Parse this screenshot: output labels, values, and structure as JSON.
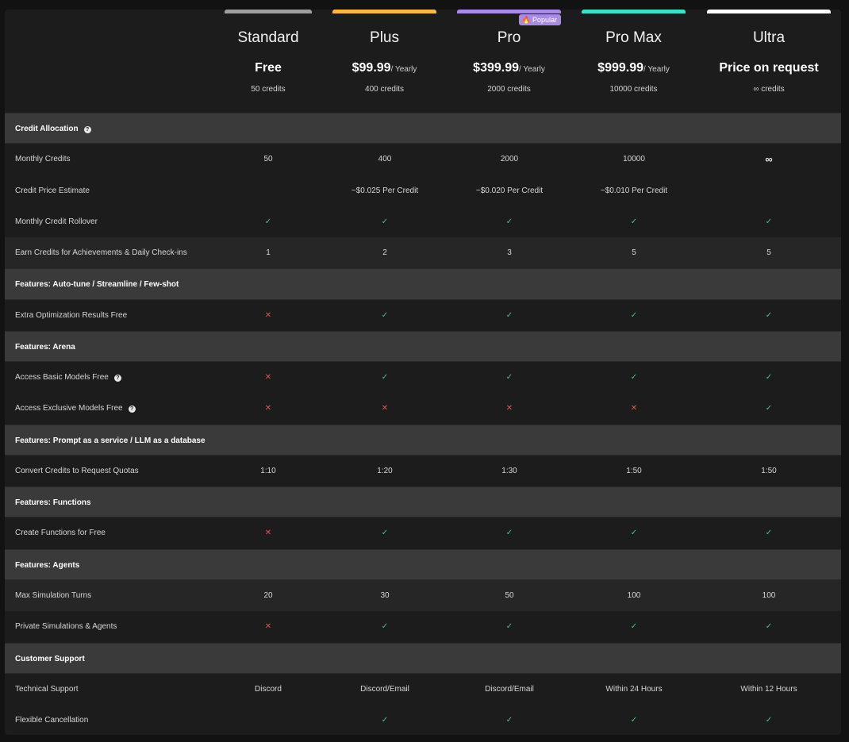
{
  "plans": [
    {
      "name": "Standard",
      "price": "Free",
      "period": "",
      "credits": "50 credits",
      "color": "#9e9e9e",
      "badge": ""
    },
    {
      "name": "Plus",
      "price": "$99.99",
      "period": "/ Yearly",
      "credits": "400 credits",
      "color": "#f5b94a",
      "badge": ""
    },
    {
      "name": "Pro",
      "price": "$399.99",
      "period": "/ Yearly",
      "credits": "2000 credits",
      "color": "#a98be0",
      "badge": "Popular"
    },
    {
      "name": "Pro Max",
      "price": "$999.99",
      "period": "/ Yearly",
      "credits": "10000 credits",
      "color": "#3de0c8",
      "badge": ""
    },
    {
      "name": "Ultra",
      "price": "Price on request",
      "period": "",
      "credits": "∞ credits",
      "color": "#ffffff",
      "badge": ""
    }
  ],
  "rows": [
    {
      "type": "section",
      "label": "Credit Allocation",
      "help": true
    },
    {
      "type": "row",
      "label": "Monthly Credits",
      "values": [
        "50",
        "400",
        "2000",
        "10000",
        "∞"
      ]
    },
    {
      "type": "row",
      "label": "Credit Price Estimate",
      "values": [
        "",
        "~$0.025 Per Credit",
        "~$0.020 Per Credit",
        "~$0.010 Per Credit",
        ""
      ]
    },
    {
      "type": "row",
      "label": "Monthly Credit Rollover",
      "values": [
        "check",
        "check",
        "check",
        "check",
        "check"
      ]
    },
    {
      "type": "row",
      "label": "Earn Credits for Achievements & Daily Check-ins",
      "values": [
        "1",
        "2",
        "3",
        "5",
        "5"
      ],
      "shade": true
    },
    {
      "type": "section",
      "label": "Features: Auto-tune / Streamline / Few-shot"
    },
    {
      "type": "row",
      "label": "Extra Optimization Results Free",
      "values": [
        "cross",
        "check",
        "check",
        "check",
        "check"
      ]
    },
    {
      "type": "section",
      "label": "Features: Arena"
    },
    {
      "type": "row",
      "label": "Access Basic Models Free",
      "help": true,
      "values": [
        "cross",
        "check",
        "check",
        "check",
        "check"
      ]
    },
    {
      "type": "row",
      "label": "Access Exclusive Models Free",
      "help": true,
      "values": [
        "cross",
        "cross",
        "cross",
        "cross",
        "check"
      ]
    },
    {
      "type": "section",
      "label": "Features: Prompt as a service / LLM as a database"
    },
    {
      "type": "row",
      "label": "Convert Credits to Request Quotas",
      "values": [
        "1:10",
        "1:20",
        "1:30",
        "1:50",
        "1:50"
      ]
    },
    {
      "type": "section",
      "label": "Features: Functions"
    },
    {
      "type": "row",
      "label": "Create Functions for Free",
      "values": [
        "cross",
        "check",
        "check",
        "check",
        "check"
      ]
    },
    {
      "type": "section",
      "label": "Features: Agents"
    },
    {
      "type": "row",
      "label": "Max Simulation Turns",
      "values": [
        "20",
        "30",
        "50",
        "100",
        "100"
      ],
      "shade": true
    },
    {
      "type": "row",
      "label": "Private Simulations & Agents",
      "values": [
        "cross",
        "check",
        "check",
        "check",
        "check"
      ]
    },
    {
      "type": "section",
      "label": "Customer Support"
    },
    {
      "type": "row",
      "label": "Technical Support",
      "values": [
        "Discord",
        "Discord/Email",
        "Discord/Email",
        "Within 24 Hours",
        "Within 12 Hours"
      ]
    },
    {
      "type": "row",
      "label": "Flexible Cancellation",
      "values": [
        "",
        "check",
        "check",
        "check",
        "check"
      ]
    }
  ],
  "icons": {
    "check": "check-icon",
    "cross": "cross-icon",
    "help": "help-circle-icon",
    "flame": "flame-icon"
  }
}
